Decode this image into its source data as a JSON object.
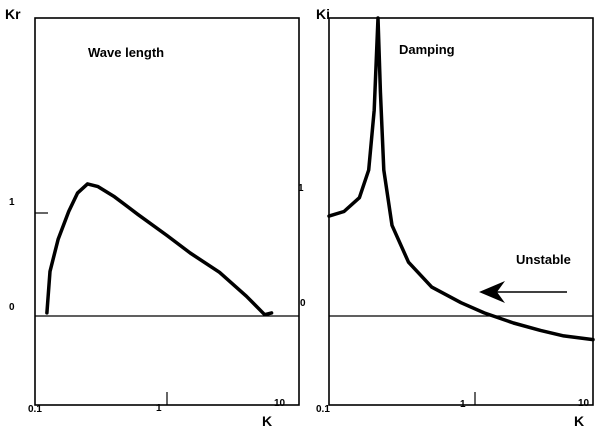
{
  "chart_data": [
    {
      "type": "line",
      "title": "Wave length",
      "ylabel": "Kr",
      "xlabel": "K",
      "xscale": "log",
      "xlim": [
        0.1,
        10
      ],
      "ylim": [
        -1,
        3.2
      ],
      "xticks": [
        "0.1",
        "1",
        "10"
      ],
      "yticks": [
        "1",
        "0"
      ],
      "series": [
        {
          "x": [
            0.123,
            0.13,
            0.15,
            0.18,
            0.21,
            0.25,
            0.3,
            0.4,
            0.6,
            1.0,
            1.5,
            2.5,
            4.0,
            5.5,
            6.2
          ],
          "y": [
            0.0,
            0.45,
            0.8,
            1.1,
            1.3,
            1.4,
            1.37,
            1.26,
            1.07,
            0.84,
            0.65,
            0.44,
            0.18,
            -0.02,
            0.0
          ]
        }
      ]
    },
    {
      "type": "line",
      "title": "Damping",
      "ylabel": "Ki",
      "xlabel": "K",
      "xscale": "log",
      "xlim": [
        0.1,
        10
      ],
      "ylim": [
        -1,
        3.2
      ],
      "xticks": [
        "0.1",
        "1",
        "10"
      ],
      "yticks": [
        "1",
        "0"
      ],
      "annotations": [
        "Unstable"
      ],
      "series": [
        {
          "x": [
            0.1,
            0.13,
            0.17,
            0.2,
            0.22,
            0.235,
            0.245,
            0.26,
            0.3,
            0.4,
            0.6,
            1.0,
            1.5,
            2.5,
            4.0,
            6.0,
            10.0
          ],
          "y": [
            1.05,
            1.1,
            1.25,
            1.55,
            2.2,
            3.2,
            2.4,
            1.55,
            0.95,
            0.55,
            0.28,
            0.11,
            0.0,
            -0.11,
            -0.19,
            -0.25,
            -0.29
          ]
        }
      ]
    }
  ]
}
